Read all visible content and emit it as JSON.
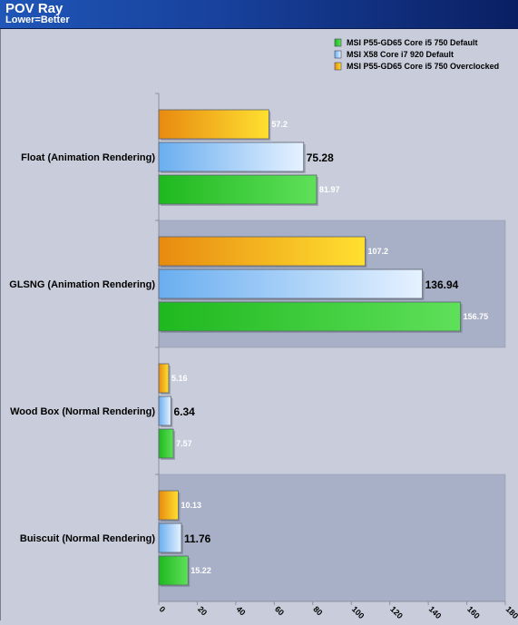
{
  "header": {
    "title": "POV Ray",
    "subtitle": "Lower=Better"
  },
  "colors": {
    "background": "#c9cddb",
    "band": "#a7b0c6",
    "header_start": "#1f56b8",
    "header_end": "#0a1f63"
  },
  "chart_data": {
    "type": "bar",
    "orientation": "horizontal",
    "categories": [
      "Float (Animation Rendering)",
      "GLSNG (Animation Rendering)",
      "Wood Box (Normal Rendering)",
      "Buiscuit (Normal Rendering)"
    ],
    "series": [
      {
        "name": "MSI P55-GD65 Core i5 750 Default",
        "color": "#1fb81f",
        "color_light": "#5fe05a",
        "values": [
          81.97,
          156.75,
          7.57,
          15.22
        ],
        "labels": [
          "81.97",
          "156.75",
          "7.57",
          "15.22"
        ]
      },
      {
        "name": "MSI X58 Core i7 920 Default",
        "color": "#6aaef0",
        "color_light": "#e6f2ff",
        "values": [
          75.28,
          136.94,
          6.34,
          11.76
        ],
        "labels": [
          "75.28",
          "136.94",
          "6.34",
          "11.76"
        ]
      },
      {
        "name": "MSI P55-GD65 Core i5 750 Overclocked",
        "color": "#e88a10",
        "color_light": "#ffe030",
        "values": [
          57.2,
          107.2,
          5.16,
          10.13
        ],
        "labels": [
          "57.2",
          "107.2",
          "5.16",
          "10.13"
        ]
      }
    ],
    "xlim": [
      0,
      180
    ],
    "ticks": [
      "0",
      "20",
      "40",
      "60",
      "80",
      "100",
      "120",
      "140",
      "160",
      "180"
    ],
    "legend_position": "top-right",
    "grid": false
  }
}
